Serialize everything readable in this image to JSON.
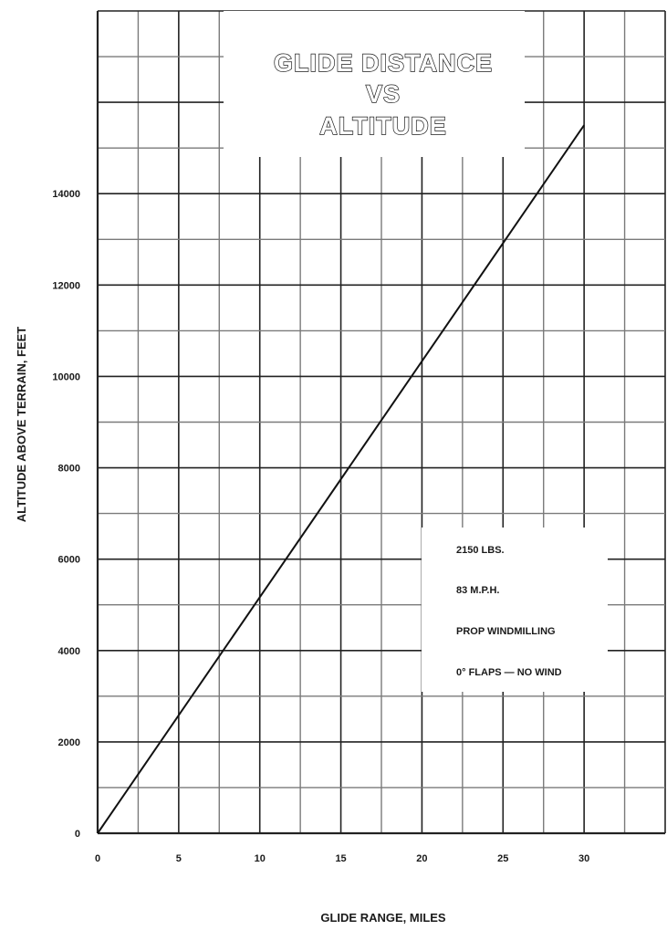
{
  "chart_data": {
    "type": "line",
    "title_lines": [
      "GLIDE DISTANCE",
      "VS",
      "ALTITUDE"
    ],
    "xlabel": "GLIDE RANGE, MILES",
    "ylabel": "ALTITUDE ABOVE TERRAIN, FEET",
    "xlim": [
      0,
      35
    ],
    "ylim": [
      0,
      18000
    ],
    "x_ticks": [
      0,
      5,
      10,
      15,
      20,
      25,
      30
    ],
    "y_ticks": [
      0,
      2000,
      4000,
      6000,
      8000,
      10000,
      12000,
      14000
    ],
    "grid": true,
    "series": [
      {
        "x": [
          0,
          30
        ],
        "y": [
          0,
          15500
        ]
      }
    ],
    "annotations": [
      "2150 LBS.",
      "83 M.P.H.",
      "PROP WINDMILLING",
      "0° FLAPS — NO WIND"
    ]
  },
  "colors": {
    "grid": "#7a7a7a",
    "grid_major": "#222222",
    "line": "#111111",
    "background": "#ffffff"
  }
}
